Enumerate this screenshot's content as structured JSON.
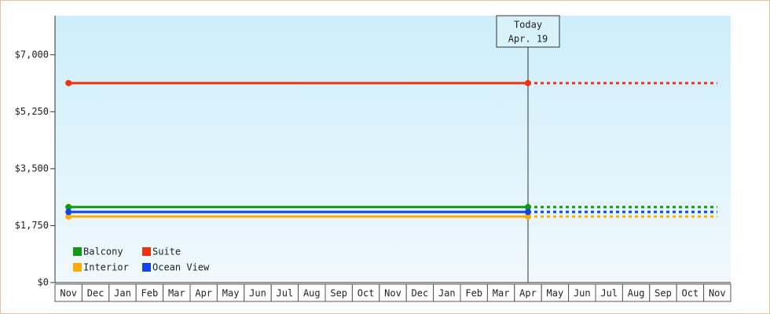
{
  "chart_data": {
    "type": "line",
    "categories": [
      "Nov",
      "Dec",
      "Jan",
      "Feb",
      "Mar",
      "Apr",
      "May",
      "Jun",
      "Jul",
      "Aug",
      "Sep",
      "Oct",
      "Nov",
      "Dec",
      "Jan",
      "Feb",
      "Mar",
      "Apr",
      "May",
      "Jun",
      "Jul",
      "Aug",
      "Sep",
      "Oct",
      "Nov"
    ],
    "series": [
      {
        "name": "Balcony",
        "color": "#119911",
        "values": [
          2320,
          2320,
          2320,
          2320,
          2320,
          2320,
          2320,
          2320,
          2320,
          2320,
          2320,
          2320,
          2320,
          2320,
          2320,
          2320,
          2320,
          2320,
          2320,
          2320,
          2320,
          2320,
          2320,
          2320,
          2320
        ]
      },
      {
        "name": "Suite",
        "color": "#ee3311",
        "values": [
          6130,
          6130,
          6130,
          6130,
          6130,
          6130,
          6130,
          6130,
          6130,
          6130,
          6130,
          6130,
          6130,
          6130,
          6130,
          6130,
          6130,
          6130,
          6130,
          6130,
          6130,
          6130,
          6130,
          6130,
          6130
        ]
      },
      {
        "name": "Interior",
        "color": "#ffaa00",
        "values": [
          2030,
          2030,
          2030,
          2030,
          2030,
          2030,
          2030,
          2030,
          2030,
          2030,
          2030,
          2030,
          2030,
          2030,
          2030,
          2030,
          2030,
          2030,
          2030,
          2030,
          2030,
          2030,
          2030,
          2030,
          2030
        ]
      },
      {
        "name": "Ocean View",
        "color": "#1144ee",
        "values": [
          2170,
          2170,
          2170,
          2170,
          2170,
          2170,
          2170,
          2170,
          2170,
          2170,
          2170,
          2170,
          2170,
          2170,
          2170,
          2170,
          2170,
          2170,
          2170,
          2170,
          2170,
          2170,
          2170,
          2170,
          2170
        ]
      }
    ],
    "ylim": [
      0,
      8200
    ],
    "yticks": [
      {
        "value": 0,
        "label": "$0"
      },
      {
        "value": 1750,
        "label": "$1,750"
      },
      {
        "value": 3500,
        "label": "$3,500"
      },
      {
        "value": 5250,
        "label": "$5,250"
      },
      {
        "value": 7000,
        "label": "$7,000"
      }
    ],
    "annotation": {
      "lines": [
        "Today",
        "Apr. 19"
      ],
      "index": 17
    }
  }
}
